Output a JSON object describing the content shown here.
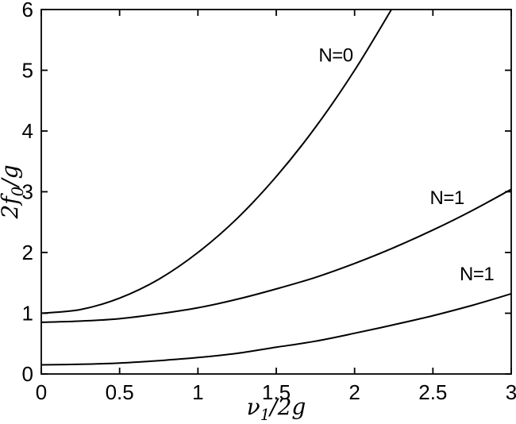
{
  "figure": {
    "background": "#ffffff",
    "ink": "#000000"
  },
  "chart_data": {
    "type": "line",
    "title": "",
    "xlabel": "ν_{1}/2g",
    "ylabel": "2f_{0}/g",
    "xlim": [
      0,
      3
    ],
    "ylim": [
      0,
      6
    ],
    "x_ticks": [
      0,
      0.5,
      1,
      1.5,
      2,
      2.5,
      3
    ],
    "x_tick_labels": [
      "0",
      "0.5",
      "1",
      "1.5",
      "2",
      "2.5",
      "3"
    ],
    "y_ticks": [
      0,
      1,
      2,
      3,
      4,
      5,
      6
    ],
    "y_tick_labels": [
      "0",
      "1",
      "2",
      "3",
      "4",
      "5",
      "6"
    ],
    "grid": false,
    "frame": "closed box with inward tick marks on all four sides",
    "legend_position": "none (inline curve labels)",
    "line_color": "#000000",
    "series": [
      {
        "name": "N=0",
        "x": [
          0,
          0.25,
          0.5,
          0.75,
          1,
          1.25,
          1.5,
          1.75,
          2,
          2.24
        ],
        "y": [
          1.0,
          1.06,
          1.25,
          1.56,
          2.0,
          2.56,
          3.25,
          4.06,
          5.0,
          6.02
        ],
        "label": {
          "text": "N=0",
          "x": 1.88,
          "y": 5.25
        }
      },
      {
        "name": "N=1 (upper)",
        "x": [
          0,
          0.25,
          0.5,
          0.75,
          1,
          1.25,
          1.5,
          1.75,
          2,
          2.25,
          2.5,
          2.75,
          3
        ],
        "y": [
          0.85,
          0.87,
          0.91,
          0.99,
          1.09,
          1.23,
          1.4,
          1.59,
          1.82,
          2.08,
          2.37,
          2.69,
          3.04
        ],
        "label": {
          "text": "N=1",
          "x": 2.59,
          "y": 2.9
        }
      },
      {
        "name": "N=1 (lower)",
        "x": [
          0,
          0.25,
          0.5,
          0.75,
          1,
          1.25,
          1.5,
          1.75,
          2,
          2.25,
          2.5,
          2.75,
          3
        ],
        "y": [
          0.15,
          0.16,
          0.18,
          0.22,
          0.27,
          0.34,
          0.44,
          0.54,
          0.67,
          0.81,
          0.96,
          1.13,
          1.32
        ],
        "label": {
          "text": "N=1",
          "x": 2.78,
          "y": 1.65
        }
      }
    ]
  }
}
